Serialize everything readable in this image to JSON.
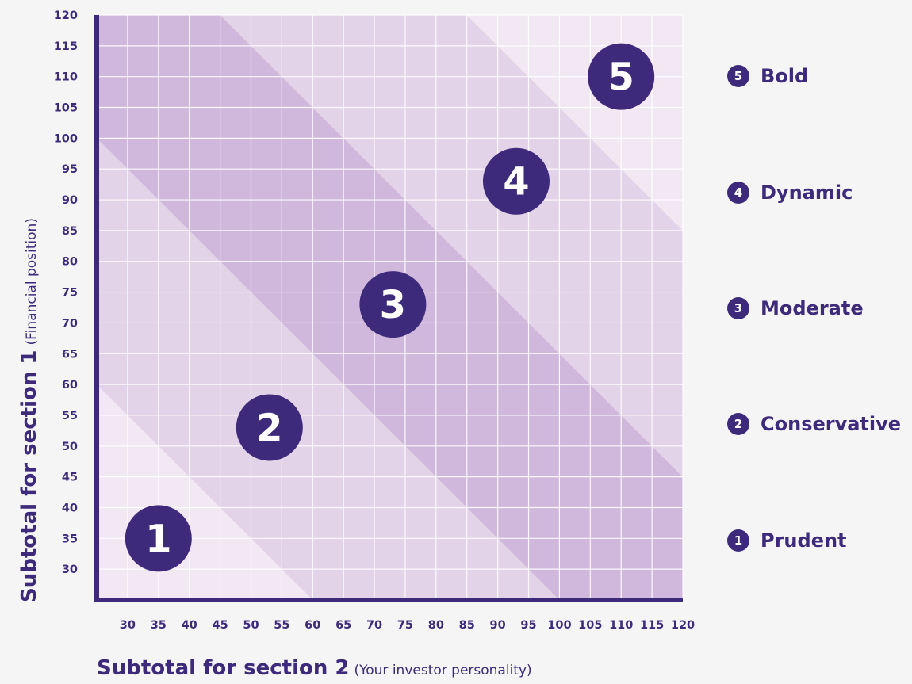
{
  "chart_data": {
    "type": "heatmap",
    "x_axis": {
      "title": "Subtotal for section 2",
      "subtitle": "(Your investor personality)",
      "ticks": [
        30,
        35,
        40,
        45,
        50,
        55,
        60,
        65,
        70,
        75,
        80,
        85,
        90,
        95,
        100,
        105,
        110,
        115,
        120
      ],
      "range": [
        25,
        120
      ]
    },
    "y_axis": {
      "title": "Subtotal for section 1",
      "subtitle": "(Financial position)",
      "ticks": [
        30,
        35,
        40,
        45,
        50,
        55,
        60,
        65,
        70,
        75,
        80,
        85,
        90,
        95,
        100,
        105,
        110,
        115,
        120
      ],
      "range": [
        25,
        120
      ]
    },
    "zones": [
      {
        "id": 1,
        "label": "Prudent",
        "sum_max": 85,
        "color": "#f1e8f3",
        "marker": {
          "x": 35,
          "y": 35
        }
      },
      {
        "id": 2,
        "label": "Conservative",
        "sum_min": 85,
        "sum_max": 125,
        "color": "#e3d3e8",
        "marker": {
          "x": 53,
          "y": 53
        }
      },
      {
        "id": 3,
        "label": "Moderate",
        "sum_min": 125,
        "sum_max": 165,
        "color": "#d0b8dc",
        "marker": {
          "x": 73,
          "y": 73
        }
      },
      {
        "id": 4,
        "label": "Dynamic",
        "sum_min": 165,
        "sum_max": 205,
        "color": "#e3d3e8",
        "marker": {
          "x": 93,
          "y": 93
        }
      },
      {
        "id": 5,
        "label": "Bold",
        "sum_min": 205,
        "color": "#f1e8f3",
        "marker": {
          "x": 110,
          "y": 110
        }
      }
    ],
    "grid": true,
    "legend_position": "right"
  },
  "legend": [
    {
      "num": "5",
      "label": "Bold"
    },
    {
      "num": "4",
      "label": "Dynamic"
    },
    {
      "num": "3",
      "label": "Moderate"
    },
    {
      "num": "2",
      "label": "Conservative"
    },
    {
      "num": "1",
      "label": "Prudent"
    }
  ],
  "colors": {
    "accent": "#3d2a7a",
    "background": "#f5f5f5",
    "gridline": "#ffffff"
  }
}
